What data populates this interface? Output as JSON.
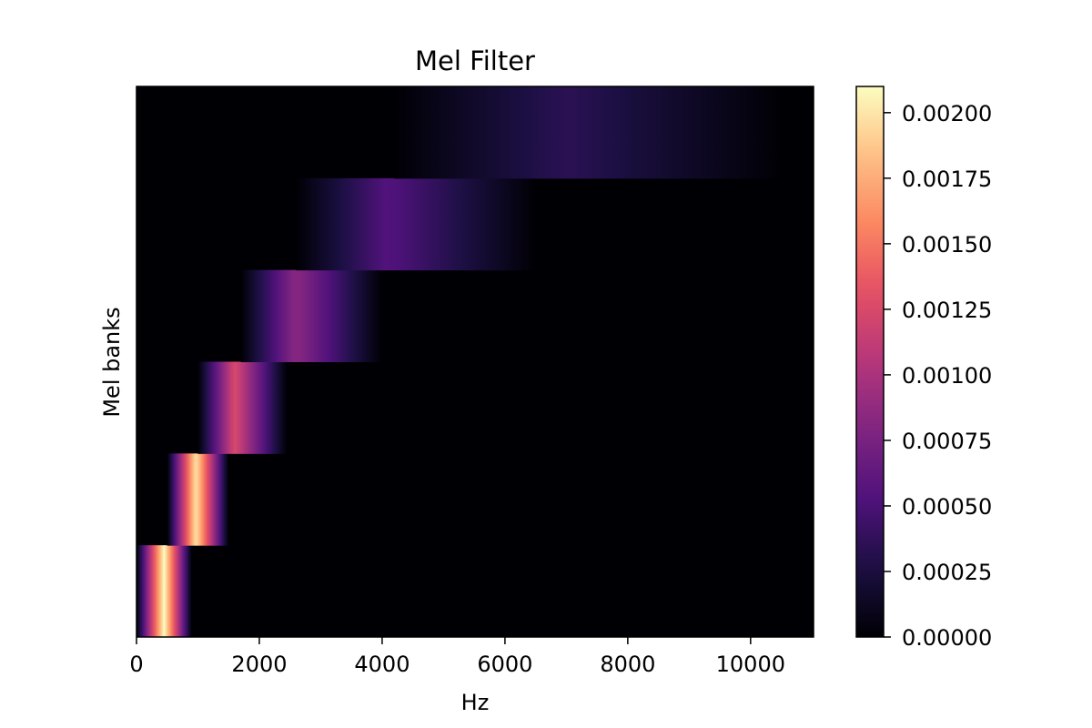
{
  "chart_data": {
    "type": "heatmap",
    "title": "Mel Filter",
    "xlabel": "Hz",
    "ylabel": "Mel banks",
    "xlim": [
      0,
      11025
    ],
    "x_ticks": [
      0,
      2000,
      4000,
      6000,
      8000,
      10000
    ],
    "y_ticks": [],
    "colormap": "magma",
    "colorbar": {
      "range": [
        0,
        0.0021
      ],
      "ticks": [
        0.0,
        0.00025,
        0.0005,
        0.00075,
        0.001,
        0.00125,
        0.0015,
        0.00175,
        0.002
      ],
      "tick_labels": [
        "0.00000",
        "0.00025",
        "0.00050",
        "0.00075",
        "0.00100",
        "0.00125",
        "0.00150",
        "0.00175",
        "0.00200"
      ]
    },
    "banks": [
      {
        "index": 0,
        "start_hz": 0,
        "center_hz": 450,
        "end_hz": 900,
        "peak": 0.0021
      },
      {
        "index": 1,
        "start_hz": 500,
        "center_hz": 970,
        "end_hz": 1500,
        "peak": 0.002
      },
      {
        "index": 2,
        "start_hz": 1000,
        "center_hz": 1600,
        "end_hz": 2450,
        "peak": 0.00125
      },
      {
        "index": 3,
        "start_hz": 1700,
        "center_hz": 2600,
        "end_hz": 4000,
        "peak": 0.00085
      },
      {
        "index": 4,
        "start_hz": 2600,
        "center_hz": 4100,
        "end_hz": 6500,
        "peak": 0.00055
      },
      {
        "index": 5,
        "start_hz": 4200,
        "center_hz": 7000,
        "end_hz": 10500,
        "peak": 0.00035
      }
    ]
  }
}
